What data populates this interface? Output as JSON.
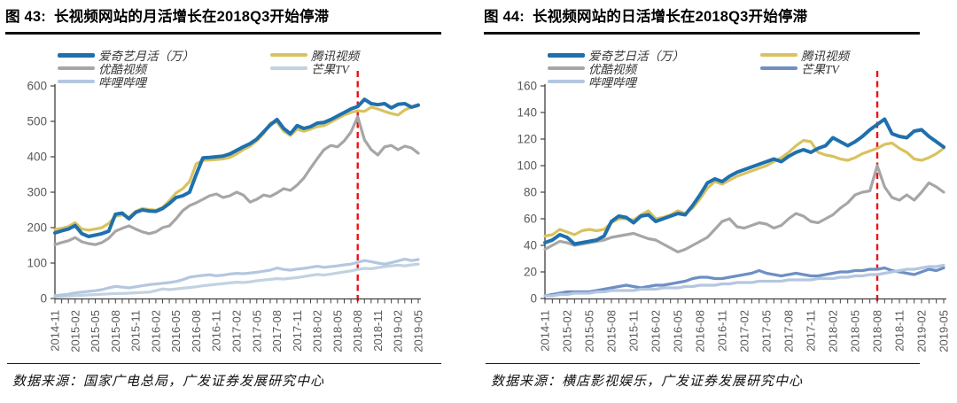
{
  "chart_data": [
    {
      "type": "line",
      "figure_label": "图 43:",
      "title": "长视频网站的月活增长在2018Q3开始停滞",
      "source": "数据来源：国家广电总局，广发证券发展研究中心",
      "ylim": [
        0,
        600
      ],
      "y_ticks": [
        0,
        100,
        200,
        300,
        400,
        500,
        600
      ],
      "x_tick_every": 3,
      "grid": "off",
      "legend_position": "top-left-two-columns",
      "legend_columns": [
        [
          0,
          2,
          4
        ],
        [
          1,
          3
        ]
      ],
      "vline": {
        "x": "2018-08",
        "color": "#ee1111",
        "style": "dashed",
        "meaning": "2018Q3"
      },
      "x": [
        "2014-11",
        "2014-12",
        "2015-01",
        "2015-02",
        "2015-03",
        "2015-04",
        "2015-05",
        "2015-06",
        "2015-07",
        "2015-08",
        "2015-09",
        "2015-10",
        "2015-11",
        "2015-12",
        "2016-01",
        "2016-02",
        "2016-03",
        "2016-04",
        "2016-05",
        "2016-06",
        "2016-07",
        "2016-08",
        "2016-09",
        "2016-10",
        "2016-11",
        "2016-12",
        "2017-01",
        "2017-02",
        "2017-03",
        "2017-04",
        "2017-05",
        "2017-06",
        "2017-07",
        "2017-08",
        "2017-09",
        "2017-10",
        "2017-11",
        "2017-12",
        "2018-01",
        "2018-02",
        "2018-03",
        "2018-04",
        "2018-05",
        "2018-06",
        "2018-07",
        "2018-08",
        "2018-09",
        "2018-10",
        "2018-11",
        "2018-12",
        "2019-01",
        "2019-02",
        "2019-03",
        "2019-04",
        "2019-05"
      ],
      "series": [
        {
          "key": "iqiyi",
          "name": "爱奇艺月活（万）",
          "color": "#1f70ad",
          "width": 4,
          "values": [
            185,
            191,
            196,
            206,
            183,
            175,
            179,
            183,
            190,
            238,
            241,
            225,
            243,
            250,
            247,
            246,
            254,
            268,
            285,
            290,
            300,
            350,
            397,
            398,
            400,
            402,
            408,
            418,
            428,
            437,
            450,
            470,
            490,
            505,
            480,
            465,
            488,
            480,
            485,
            495,
            497,
            505,
            515,
            525,
            535,
            542,
            562,
            550,
            547,
            550,
            538,
            548,
            550,
            540,
            546
          ]
        },
        {
          "key": "tencent",
          "name": "腾讯视频",
          "color": "#d9c25f",
          "width": 3.2,
          "values": [
            195,
            198,
            203,
            214,
            196,
            193,
            196,
            200,
            212,
            232,
            236,
            229,
            246,
            254,
            251,
            249,
            257,
            276,
            298,
            310,
            330,
            380,
            390,
            391,
            392,
            394,
            398,
            408,
            420,
            430,
            445,
            465,
            495,
            498,
            472,
            460,
            478,
            472,
            478,
            485,
            488,
            498,
            508,
            518,
            525,
            530,
            528,
            540,
            535,
            528,
            522,
            518,
            532,
            540,
            544
          ]
        },
        {
          "key": "youku",
          "name": "优酷视频",
          "color": "#a6a6a6",
          "width": 3.2,
          "values": [
            152,
            158,
            163,
            172,
            160,
            155,
            152,
            158,
            170,
            190,
            198,
            205,
            196,
            188,
            183,
            188,
            200,
            205,
            225,
            248,
            262,
            270,
            280,
            290,
            295,
            285,
            290,
            300,
            292,
            272,
            280,
            292,
            288,
            298,
            310,
            305,
            320,
            340,
            368,
            395,
            420,
            432,
            428,
            445,
            470,
            513,
            448,
            420,
            405,
            428,
            432,
            420,
            430,
            425,
            410
          ]
        },
        {
          "key": "mango",
          "name": "芒果TV",
          "color": "#c2d2e0",
          "width": 3.2,
          "values": [
            5,
            6,
            7,
            8,
            9,
            10,
            11,
            12,
            13,
            14,
            14,
            15,
            16,
            17,
            18,
            22,
            27,
            25,
            27,
            29,
            31,
            33,
            36,
            38,
            40,
            42,
            44,
            46,
            45,
            47,
            50,
            52,
            54,
            56,
            55,
            57,
            59,
            62,
            65,
            68,
            66,
            69,
            72,
            75,
            78,
            82,
            85,
            84,
            87,
            90,
            92,
            94,
            92,
            95,
            97
          ]
        },
        {
          "key": "bilibili",
          "name": "哔哩哔哩",
          "color": "#b4c7e0",
          "width": 3.2,
          "values": [
            8,
            10,
            12,
            16,
            18,
            20,
            22,
            25,
            30,
            34,
            32,
            30,
            33,
            36,
            39,
            41,
            43,
            45,
            48,
            53,
            60,
            63,
            65,
            67,
            64,
            66,
            69,
            71,
            70,
            72,
            74,
            77,
            80,
            86,
            82,
            80,
            83,
            85,
            88,
            91,
            88,
            90,
            92,
            95,
            97,
            102,
            107,
            104,
            100,
            97,
            101,
            106,
            111,
            107,
            110
          ]
        }
      ]
    },
    {
      "type": "line",
      "figure_label": "图 44:",
      "title": "长视频网站的日活增长在2018Q3开始停滞",
      "source": "数据来源：横店影视娱乐，广发证券发展研究中心",
      "ylim": [
        0,
        160
      ],
      "y_ticks": [
        0,
        20,
        40,
        60,
        80,
        100,
        120,
        140,
        160
      ],
      "x_tick_every": 3,
      "grid": "off",
      "legend_position": "top-left-two-columns",
      "legend_columns": [
        [
          0,
          2,
          4
        ],
        [
          1,
          3
        ]
      ],
      "vline": {
        "x": "2018-08",
        "color": "#ee1111",
        "style": "dashed",
        "meaning": "2018Q3"
      },
      "x": [
        "2014-11",
        "2014-12",
        "2015-01",
        "2015-02",
        "2015-03",
        "2015-04",
        "2015-05",
        "2015-06",
        "2015-07",
        "2015-08",
        "2015-09",
        "2015-10",
        "2015-11",
        "2015-12",
        "2016-01",
        "2016-02",
        "2016-03",
        "2016-04",
        "2016-05",
        "2016-06",
        "2016-07",
        "2016-08",
        "2016-09",
        "2016-10",
        "2016-11",
        "2016-12",
        "2017-01",
        "2017-02",
        "2017-03",
        "2017-04",
        "2017-05",
        "2017-06",
        "2017-07",
        "2017-08",
        "2017-09",
        "2017-10",
        "2017-11",
        "2017-12",
        "2018-01",
        "2018-02",
        "2018-03",
        "2018-04",
        "2018-05",
        "2018-06",
        "2018-07",
        "2018-08",
        "2018-09",
        "2018-10",
        "2018-11",
        "2018-12",
        "2019-01",
        "2019-02",
        "2019-03",
        "2019-04",
        "2019-05"
      ],
      "series": [
        {
          "key": "iqiyi",
          "name": "爱奇艺日活（万）",
          "color": "#1f70ad",
          "width": 4,
          "values": [
            42,
            44,
            48,
            46,
            41,
            42,
            43,
            44,
            47,
            58,
            62,
            61,
            57,
            62,
            63,
            58,
            60,
            62,
            64,
            63,
            70,
            78,
            87,
            90,
            88,
            92,
            95,
            97,
            99,
            101,
            103,
            105,
            103,
            107,
            110,
            112,
            110,
            113,
            115,
            121,
            118,
            115,
            118,
            122,
            127,
            131,
            135,
            124,
            122,
            121,
            126,
            127,
            122,
            118,
            114
          ]
        },
        {
          "key": "tencent",
          "name": "腾讯视频",
          "color": "#d9c25f",
          "width": 3.2,
          "values": [
            47,
            48,
            52,
            50,
            48,
            51,
            52,
            51,
            52,
            57,
            60,
            60,
            59,
            63,
            66,
            60,
            61,
            63,
            66,
            64,
            68,
            75,
            83,
            88,
            86,
            89,
            92,
            94,
            96,
            98,
            100,
            103,
            106,
            110,
            115,
            119,
            118,
            110,
            108,
            107,
            105,
            104,
            106,
            109,
            111,
            113,
            116,
            117,
            113,
            110,
            105,
            104,
            106,
            109,
            113
          ]
        },
        {
          "key": "youku",
          "name": "优酷视频",
          "color": "#a6a6a6",
          "width": 3.2,
          "values": [
            37,
            40,
            43,
            42,
            40,
            41,
            42,
            43,
            44,
            46,
            47,
            48,
            49,
            47,
            45,
            44,
            41,
            38,
            35,
            37,
            40,
            43,
            46,
            52,
            58,
            60,
            54,
            53,
            55,
            57,
            56,
            53,
            55,
            60,
            64,
            62,
            58,
            57,
            60,
            63,
            68,
            72,
            78,
            80,
            81,
            100,
            84,
            76,
            74,
            78,
            74,
            80,
            87,
            84,
            80
          ]
        },
        {
          "key": "mango",
          "name": "芒果TV",
          "color": "#6d8fc3",
          "width": 3.2,
          "values": [
            2,
            3,
            4,
            5,
            5,
            5,
            5,
            6,
            7,
            8,
            9,
            10,
            9,
            8,
            9,
            10,
            10,
            11,
            12,
            13,
            15,
            16,
            16,
            15,
            15,
            16,
            17,
            18,
            19,
            21,
            19,
            18,
            17,
            18,
            19,
            18,
            17,
            17,
            18,
            19,
            20,
            20,
            21,
            21,
            22,
            22,
            23,
            21,
            20,
            19,
            18,
            20,
            22,
            21,
            23
          ]
        },
        {
          "key": "bilibili",
          "name": "哔哩哔哩",
          "color": "#b4c7e0",
          "width": 3.2,
          "values": [
            2,
            2,
            3,
            3,
            4,
            4,
            4,
            5,
            5,
            6,
            6,
            6,
            6,
            7,
            7,
            7,
            8,
            8,
            8,
            9,
            9,
            10,
            10,
            10,
            11,
            11,
            12,
            12,
            12,
            13,
            13,
            13,
            13,
            14,
            14,
            14,
            14,
            15,
            15,
            15,
            16,
            16,
            17,
            17,
            18,
            18,
            19,
            20,
            21,
            22,
            22,
            23,
            24,
            24,
            25
          ]
        }
      ]
    }
  ]
}
